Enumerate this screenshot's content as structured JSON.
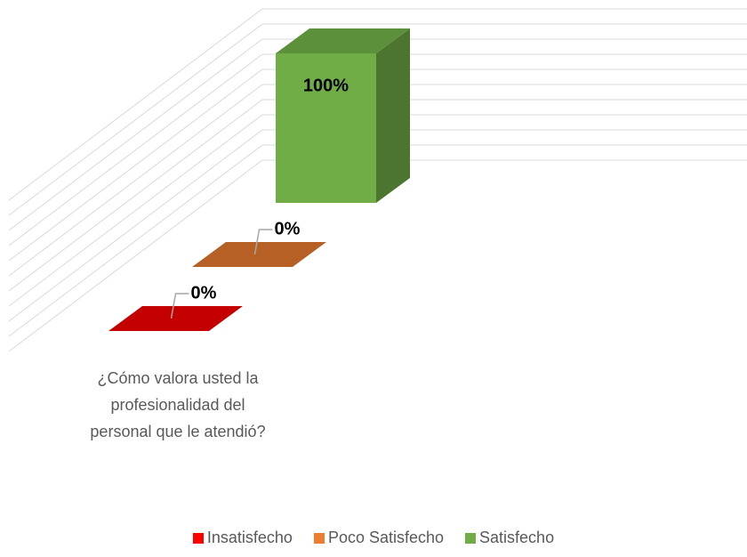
{
  "chart_data": {
    "type": "bar3d",
    "categories": [
      "¿Cómo valora usted la profesionalidad del personal que le atendió?"
    ],
    "series": [
      {
        "name": "Insatisfecho",
        "color": "#ff0000",
        "values": [
          0
        ],
        "value_labels": [
          "0%"
        ]
      },
      {
        "name": "Poco Satisfecho",
        "color": "#ed7d31",
        "values": [
          0
        ],
        "value_labels": [
          "0%"
        ]
      },
      {
        "name": "Satisfecho",
        "color": "#70ad47",
        "values": [
          100
        ],
        "value_labels": [
          "100%"
        ]
      }
    ],
    "ylim": [
      0,
      100
    ],
    "yticks": [
      0,
      10,
      20,
      30,
      40,
      50,
      60,
      70,
      80,
      90,
      100
    ],
    "grid": true
  }
}
